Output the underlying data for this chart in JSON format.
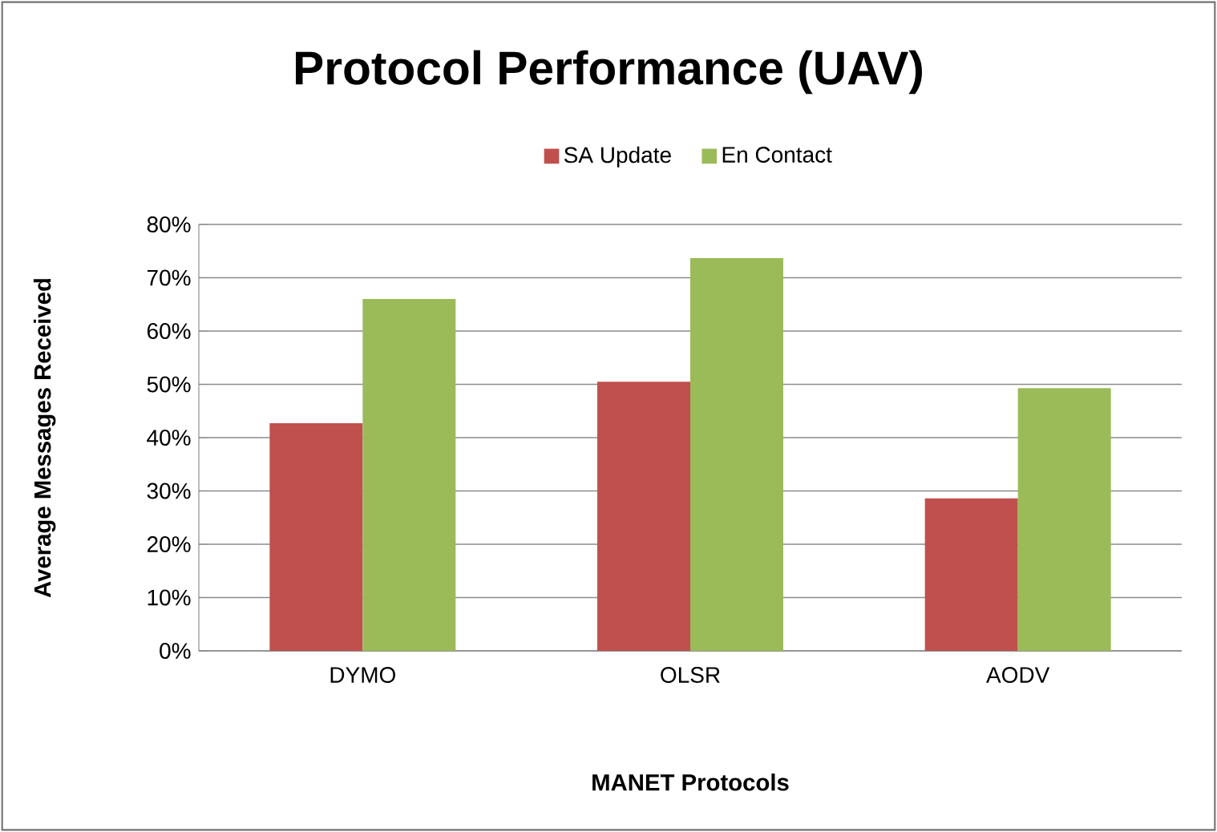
{
  "chart_data": {
    "type": "bar",
    "title": "Protocol Performance (UAV)",
    "xlabel": "MANET Protocols",
    "ylabel": "Average Messages Received",
    "categories": [
      "DYMO",
      "OLSR",
      "AODV"
    ],
    "series": [
      {
        "name": "SA Update",
        "color": "#c0504d",
        "values": [
          42.7,
          50.5,
          28.6
        ]
      },
      {
        "name": "En Contact",
        "color": "#9bbb59",
        "values": [
          66,
          73.7,
          49.3
        ]
      }
    ],
    "ylim": [
      0,
      80
    ],
    "yticks": [
      {
        "value": 0,
        "label": "0%"
      },
      {
        "value": 10,
        "label": "10%"
      },
      {
        "value": 20,
        "label": "20%"
      },
      {
        "value": 30,
        "label": "30%"
      },
      {
        "value": 40,
        "label": "40%"
      },
      {
        "value": 50,
        "label": "50%"
      },
      {
        "value": 60,
        "label": "60%"
      },
      {
        "value": 70,
        "label": "70%"
      },
      {
        "value": 80,
        "label": "80%"
      }
    ],
    "grid": "y",
    "legend": "top"
  }
}
